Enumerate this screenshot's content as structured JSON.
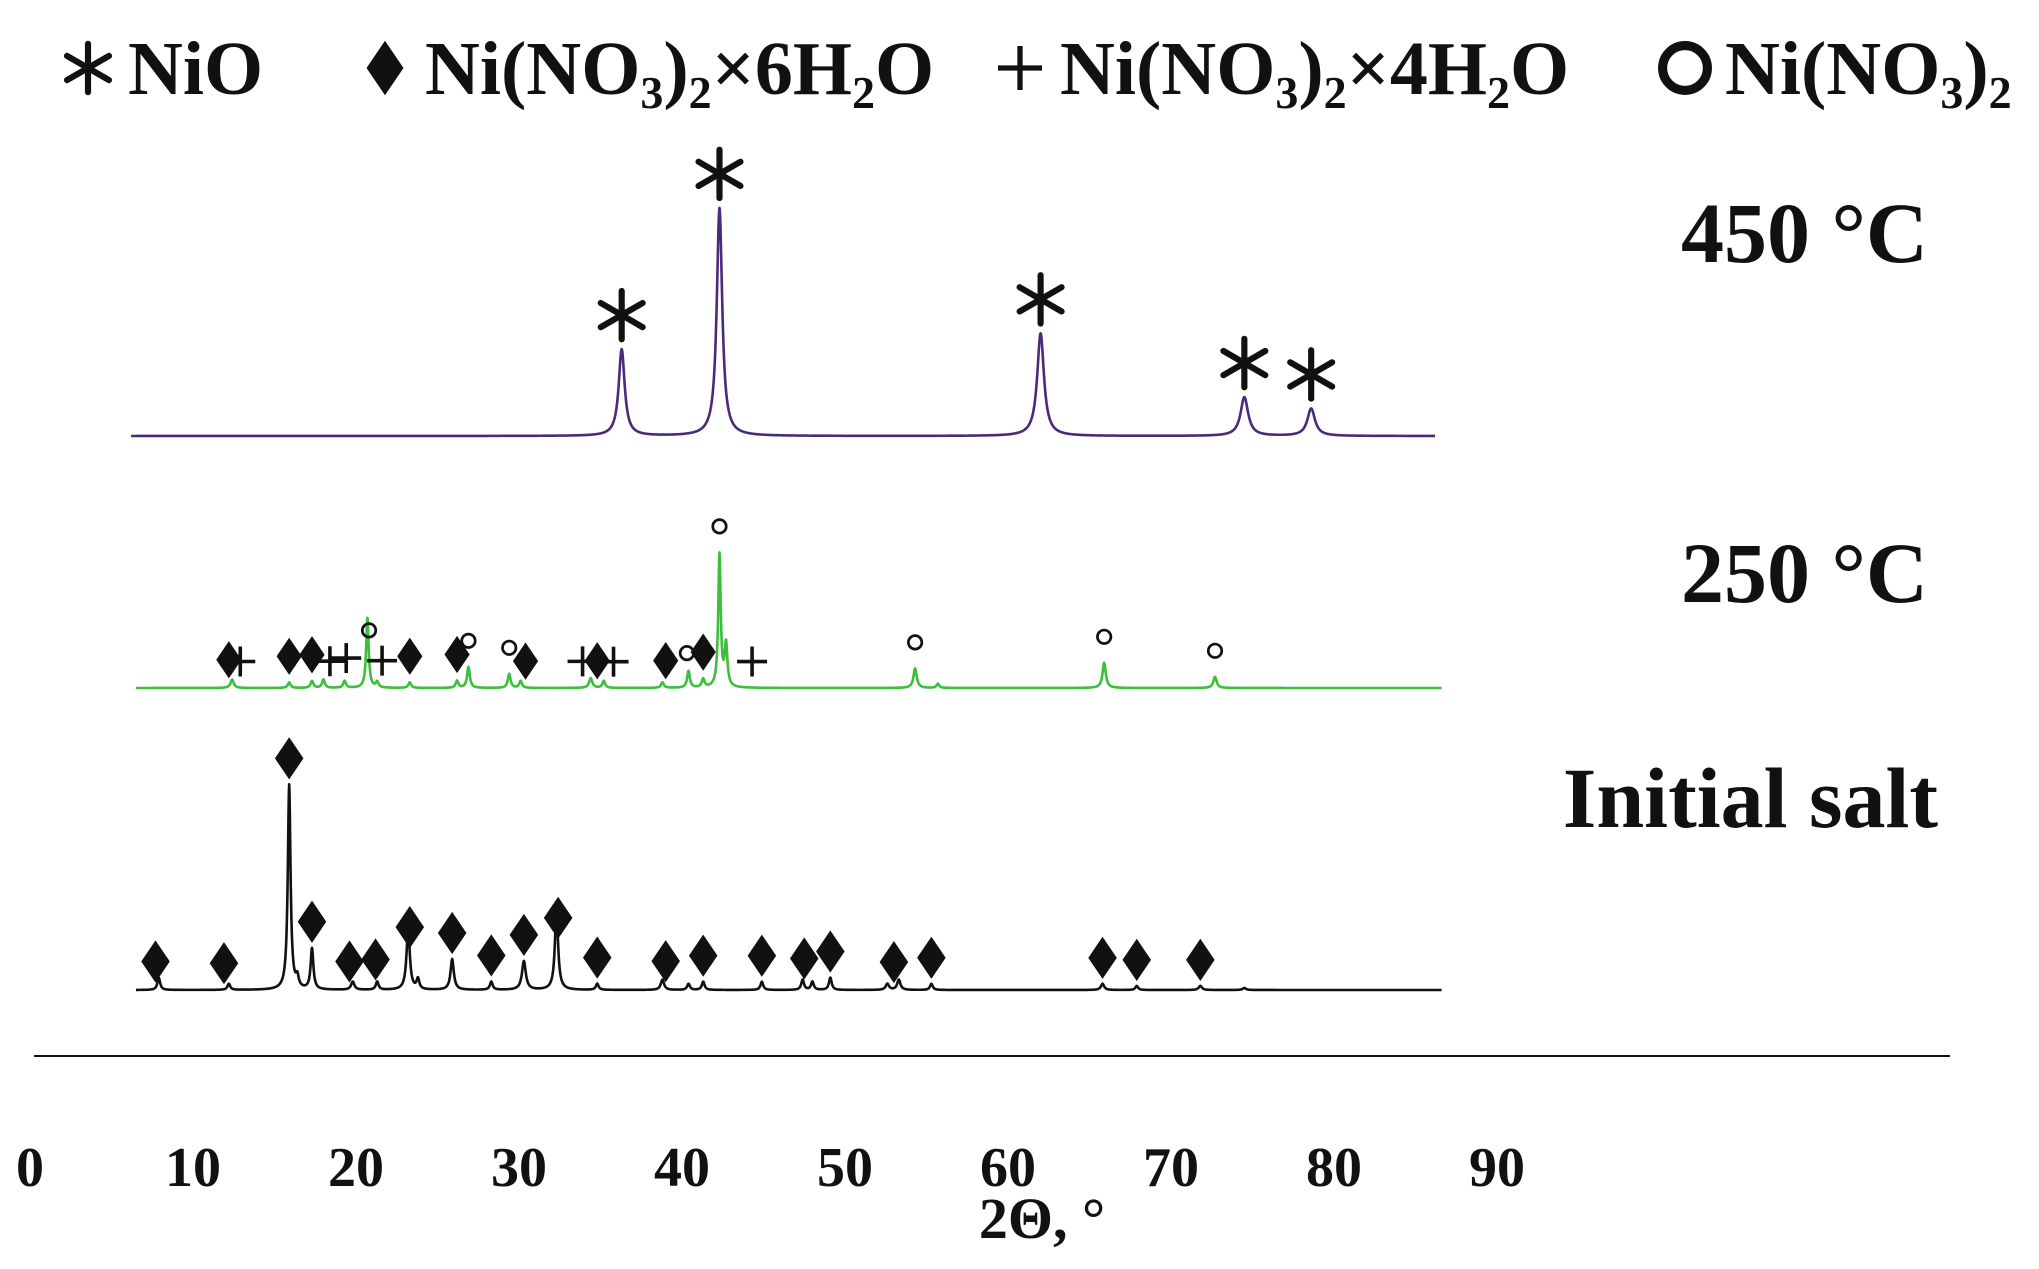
{
  "chart_data": {
    "type": "line",
    "xlabel": "2Θ, °",
    "xlim": [
      0,
      90
    ],
    "x_ticks": [
      "0",
      "10",
      "20",
      "30",
      "40",
      "50",
      "60",
      "70",
      "80",
      "90"
    ],
    "legend": {
      "placement": "top",
      "entries": [
        {
          "key": "nio",
          "symbol": "*",
          "text_parts": [
            {
              "t": "NiO",
              "sub": false
            }
          ]
        },
        {
          "key": "hexa",
          "symbol": "♦",
          "text_parts": [
            {
              "t": "Ni(NO",
              "sub": false
            },
            {
              "t": "3",
              "sub": true
            },
            {
              "t": ")",
              "sub": false
            },
            {
              "t": "2",
              "sub": true
            },
            {
              "t": "×6H",
              "sub": false
            },
            {
              "t": "2",
              "sub": true
            },
            {
              "t": "O",
              "sub": false
            }
          ]
        },
        {
          "key": "tetra",
          "symbol": "+",
          "text_parts": [
            {
              "t": "Ni(NO",
              "sub": false
            },
            {
              "t": "3",
              "sub": true
            },
            {
              "t": ")",
              "sub": false
            },
            {
              "t": "2",
              "sub": true
            },
            {
              "t": "×4H",
              "sub": false
            },
            {
              "t": "2",
              "sub": true
            },
            {
              "t": "O",
              "sub": false
            }
          ]
        },
        {
          "key": "anhyd",
          "symbol": "o",
          "text_parts": [
            {
              "t": "Ni(NO",
              "sub": false
            },
            {
              "t": "3",
              "sub": true
            },
            {
              "t": ")",
              "sub": false
            },
            {
              "t": "2",
              "sub": true
            }
          ]
        }
      ]
    },
    "series": [
      {
        "name": "450 °C",
        "color": "#4b2a78",
        "x_range": [
          6.2,
          86.2
        ],
        "peaks": [
          {
            "x": 36.3,
            "h": 0.38,
            "w": 0.22
          },
          {
            "x": 42.3,
            "h": 1.0,
            "w": 0.2
          },
          {
            "x": 62.0,
            "h": 0.45,
            "w": 0.25
          },
          {
            "x": 74.5,
            "h": 0.17,
            "w": 0.28
          },
          {
            "x": 78.6,
            "h": 0.12,
            "w": 0.28
          }
        ],
        "markers": [
          {
            "x": 36.3,
            "type": "nio"
          },
          {
            "x": 42.3,
            "type": "nio"
          },
          {
            "x": 62.0,
            "type": "nio"
          },
          {
            "x": 74.5,
            "type": "nio"
          },
          {
            "x": 78.6,
            "type": "nio"
          }
        ]
      },
      {
        "name": "250 °C",
        "color": "#3cbf3c",
        "x_range": [
          6.5,
          86.6
        ],
        "peaks": [
          {
            "x": 12.4,
            "h": 0.06,
            "w": 0.12
          },
          {
            "x": 15.9,
            "h": 0.04,
            "w": 0.1
          },
          {
            "x": 17.3,
            "h": 0.05,
            "w": 0.1
          },
          {
            "x": 18.0,
            "h": 0.06,
            "w": 0.1
          },
          {
            "x": 19.3,
            "h": 0.05,
            "w": 0.1
          },
          {
            "x": 20.7,
            "h": 0.5,
            "w": 0.09
          },
          {
            "x": 21.3,
            "h": 0.04,
            "w": 0.1
          },
          {
            "x": 23.3,
            "h": 0.04,
            "w": 0.1
          },
          {
            "x": 26.2,
            "h": 0.05,
            "w": 0.1
          },
          {
            "x": 26.9,
            "h": 0.15,
            "w": 0.1
          },
          {
            "x": 29.4,
            "h": 0.1,
            "w": 0.1
          },
          {
            "x": 30.1,
            "h": 0.05,
            "w": 0.1
          },
          {
            "x": 34.4,
            "h": 0.07,
            "w": 0.12
          },
          {
            "x": 35.2,
            "h": 0.05,
            "w": 0.1
          },
          {
            "x": 38.8,
            "h": 0.04,
            "w": 0.1
          },
          {
            "x": 40.4,
            "h": 0.12,
            "w": 0.1
          },
          {
            "x": 41.3,
            "h": 0.06,
            "w": 0.1
          },
          {
            "x": 42.3,
            "h": 0.95,
            "w": 0.09
          },
          {
            "x": 42.7,
            "h": 0.3,
            "w": 0.1
          },
          {
            "x": 54.3,
            "h": 0.14,
            "w": 0.12
          },
          {
            "x": 55.7,
            "h": 0.03,
            "w": 0.1
          },
          {
            "x": 65.9,
            "h": 0.18,
            "w": 0.12
          },
          {
            "x": 72.7,
            "h": 0.08,
            "w": 0.12
          }
        ],
        "markers": [
          {
            "x": 12.2,
            "type": "hexa"
          },
          {
            "x": 12.9,
            "type": "tetra"
          },
          {
            "x": 15.9,
            "type": "hexa"
          },
          {
            "x": 17.3,
            "type": "hexa"
          },
          {
            "x": 18.4,
            "type": "tetra"
          },
          {
            "x": 19.4,
            "type": "tetra"
          },
          {
            "x": 20.8,
            "type": "anhyd"
          },
          {
            "x": 21.6,
            "type": "tetra"
          },
          {
            "x": 23.3,
            "type": "hexa"
          },
          {
            "x": 26.2,
            "type": "hexa"
          },
          {
            "x": 26.9,
            "type": "anhyd"
          },
          {
            "x": 29.4,
            "type": "anhyd"
          },
          {
            "x": 30.4,
            "type": "hexa"
          },
          {
            "x": 33.9,
            "type": "tetra"
          },
          {
            "x": 34.8,
            "type": "hexa"
          },
          {
            "x": 35.8,
            "type": "tetra"
          },
          {
            "x": 39.0,
            "type": "hexa"
          },
          {
            "x": 40.3,
            "type": "anhyd"
          },
          {
            "x": 41.3,
            "type": "hexa"
          },
          {
            "x": 42.3,
            "type": "anhyd"
          },
          {
            "x": 44.3,
            "type": "tetra"
          },
          {
            "x": 54.3,
            "type": "anhyd"
          },
          {
            "x": 65.9,
            "type": "anhyd"
          },
          {
            "x": 72.7,
            "type": "anhyd"
          }
        ]
      },
      {
        "name": "Initial salt",
        "color": "#111111",
        "x_range": [
          6.5,
          86.6
        ],
        "peaks": [
          {
            "x": 7.9,
            "h": 0.06,
            "w": 0.1
          },
          {
            "x": 12.2,
            "h": 0.03,
            "w": 0.1
          },
          {
            "x": 15.9,
            "h": 1.0,
            "w": 0.1
          },
          {
            "x": 16.4,
            "h": 0.05,
            "w": 0.1
          },
          {
            "x": 17.3,
            "h": 0.2,
            "w": 0.1
          },
          {
            "x": 19.8,
            "h": 0.04,
            "w": 0.12
          },
          {
            "x": 21.3,
            "h": 0.04,
            "w": 0.1
          },
          {
            "x": 23.2,
            "h": 0.3,
            "w": 0.12
          },
          {
            "x": 23.8,
            "h": 0.05,
            "w": 0.1
          },
          {
            "x": 25.9,
            "h": 0.15,
            "w": 0.12
          },
          {
            "x": 28.3,
            "h": 0.04,
            "w": 0.1
          },
          {
            "x": 30.3,
            "h": 0.14,
            "w": 0.14
          },
          {
            "x": 32.3,
            "h": 0.38,
            "w": 0.12
          },
          {
            "x": 34.8,
            "h": 0.03,
            "w": 0.1
          },
          {
            "x": 38.8,
            "h": 0.05,
            "w": 0.12
          },
          {
            "x": 40.4,
            "h": 0.03,
            "w": 0.1
          },
          {
            "x": 41.3,
            "h": 0.04,
            "w": 0.1
          },
          {
            "x": 44.9,
            "h": 0.04,
            "w": 0.1
          },
          {
            "x": 47.4,
            "h": 0.05,
            "w": 0.1
          },
          {
            "x": 48.0,
            "h": 0.04,
            "w": 0.1
          },
          {
            "x": 49.1,
            "h": 0.06,
            "w": 0.1
          },
          {
            "x": 52.6,
            "h": 0.03,
            "w": 0.12
          },
          {
            "x": 53.3,
            "h": 0.05,
            "w": 0.12
          },
          {
            "x": 55.3,
            "h": 0.03,
            "w": 0.1
          },
          {
            "x": 65.8,
            "h": 0.03,
            "w": 0.12
          },
          {
            "x": 67.9,
            "h": 0.02,
            "w": 0.1
          },
          {
            "x": 71.8,
            "h": 0.02,
            "w": 0.12
          },
          {
            "x": 74.5,
            "h": 0.01,
            "w": 0.12
          }
        ],
        "markers": [
          {
            "x": 7.7,
            "type": "hexa"
          },
          {
            "x": 11.9,
            "type": "hexa"
          },
          {
            "x": 15.9,
            "type": "hexa"
          },
          {
            "x": 17.3,
            "type": "hexa"
          },
          {
            "x": 19.6,
            "type": "hexa"
          },
          {
            "x": 21.2,
            "type": "hexa"
          },
          {
            "x": 23.3,
            "type": "hexa"
          },
          {
            "x": 25.9,
            "type": "hexa"
          },
          {
            "x": 28.3,
            "type": "hexa"
          },
          {
            "x": 30.3,
            "type": "hexa"
          },
          {
            "x": 32.4,
            "type": "hexa"
          },
          {
            "x": 34.8,
            "type": "hexa"
          },
          {
            "x": 39.0,
            "type": "hexa"
          },
          {
            "x": 41.3,
            "type": "hexa"
          },
          {
            "x": 44.9,
            "type": "hexa"
          },
          {
            "x": 47.5,
            "type": "hexa"
          },
          {
            "x": 49.1,
            "type": "hexa"
          },
          {
            "x": 53.0,
            "type": "hexa"
          },
          {
            "x": 55.3,
            "type": "hexa"
          },
          {
            "x": 65.8,
            "type": "hexa"
          },
          {
            "x": 67.9,
            "type": "hexa"
          },
          {
            "x": 71.8,
            "type": "hexa"
          }
        ]
      }
    ]
  }
}
